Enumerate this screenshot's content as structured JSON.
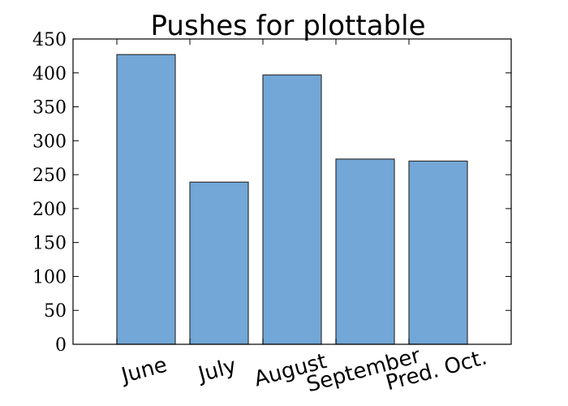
{
  "chart_data": {
    "type": "bar",
    "title": "Pushes for plottable",
    "xlabel": "",
    "ylabel": "",
    "categories": [
      "June",
      "July",
      "August",
      "September",
      "Pred. Oct."
    ],
    "values": [
      427,
      239,
      397,
      273,
      270
    ],
    "ylim": [
      0,
      450
    ],
    "yticks": [
      "0",
      "50",
      "100",
      "150",
      "200",
      "250",
      "300",
      "350",
      "400",
      "450"
    ],
    "bar_color": "#72a7d7",
    "bar_edge_color": "#333333",
    "grid": false,
    "legend": "none"
  }
}
